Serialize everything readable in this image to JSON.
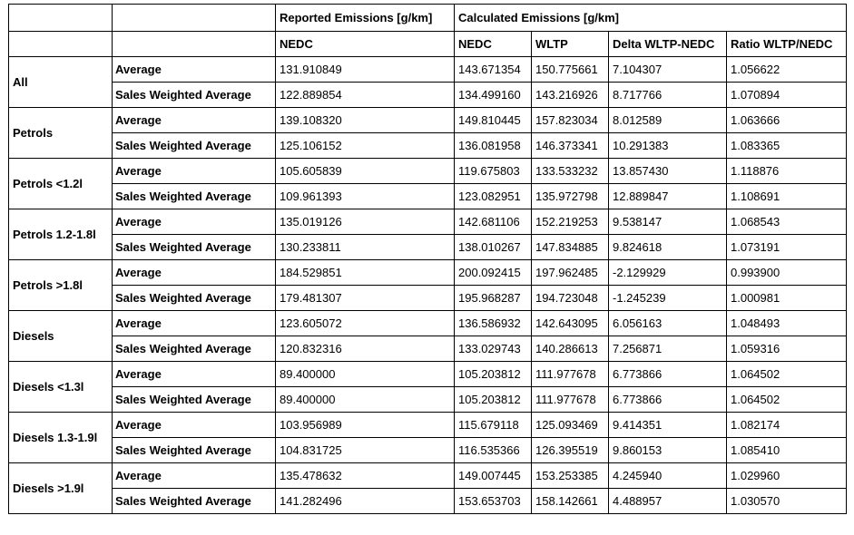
{
  "header": {
    "reported_group": "Reported Emissions [g/km]",
    "calculated_group": "Calculated Emissions [g/km]",
    "columns": [
      "NEDC",
      "NEDC",
      "WLTP",
      "Delta WLTP-NEDC",
      "Ratio WLTP/NEDC"
    ]
  },
  "groups": [
    {
      "name": "All",
      "rows": [
        {
          "metric": "Average",
          "values": [
            "131.910849",
            "143.671354",
            "150.775661",
            "7.104307",
            "1.056622"
          ]
        },
        {
          "metric": "Sales Weighted Average",
          "values": [
            "122.889854",
            "134.499160",
            "143.216926",
            "8.717766",
            "1.070894"
          ]
        }
      ]
    },
    {
      "name": "Petrols",
      "rows": [
        {
          "metric": "Average",
          "values": [
            "139.108320",
            "149.810445",
            "157.823034",
            "8.012589",
            "1.063666"
          ]
        },
        {
          "metric": "Sales Weighted Average",
          "values": [
            "125.106152",
            "136.081958",
            "146.373341",
            "10.291383",
            "1.083365"
          ]
        }
      ]
    },
    {
      "name": "Petrols <1.2l",
      "rows": [
        {
          "metric": "Average",
          "values": [
            "105.605839",
            "119.675803",
            "133.533232",
            "13.857430",
            "1.118876"
          ]
        },
        {
          "metric": "Sales Weighted Average",
          "values": [
            "109.961393",
            "123.082951",
            "135.972798",
            "12.889847",
            "1.108691"
          ]
        }
      ]
    },
    {
      "name": "Petrols 1.2-1.8l",
      "rows": [
        {
          "metric": "Average",
          "values": [
            "135.019126",
            "142.681106",
            "152.219253",
            "9.538147",
            "1.068543"
          ]
        },
        {
          "metric": "Sales Weighted Average",
          "values": [
            "130.233811",
            "138.010267",
            "147.834885",
            "9.824618",
            "1.073191"
          ]
        }
      ]
    },
    {
      "name": "Petrols >1.8l",
      "rows": [
        {
          "metric": "Average",
          "values": [
            "184.529851",
            "200.092415",
            "197.962485",
            "-2.129929",
            "0.993900"
          ]
        },
        {
          "metric": "Sales Weighted Average",
          "values": [
            "179.481307",
            "195.968287",
            "194.723048",
            "-1.245239",
            "1.000981"
          ]
        }
      ]
    },
    {
      "name": "Diesels",
      "rows": [
        {
          "metric": "Average",
          "values": [
            "123.605072",
            "136.586932",
            "142.643095",
            "6.056163",
            "1.048493"
          ]
        },
        {
          "metric": "Sales Weighted Average",
          "values": [
            "120.832316",
            "133.029743",
            "140.286613",
            "7.256871",
            "1.059316"
          ]
        }
      ]
    },
    {
      "name": "Diesels <1.3l",
      "rows": [
        {
          "metric": "Average",
          "values": [
            "89.400000",
            "105.203812",
            "111.977678",
            "6.773866",
            "1.064502"
          ]
        },
        {
          "metric": "Sales Weighted Average",
          "values": [
            "89.400000",
            "105.203812",
            "111.977678",
            "6.773866",
            "1.064502"
          ]
        }
      ]
    },
    {
      "name": "Diesels 1.3-1.9l",
      "rows": [
        {
          "metric": "Average",
          "values": [
            "103.956989",
            "115.679118",
            "125.093469",
            "9.414351",
            "1.082174"
          ]
        },
        {
          "metric": "Sales Weighted Average",
          "values": [
            "104.831725",
            "116.535366",
            "126.395519",
            "9.860153",
            "1.085410"
          ]
        }
      ]
    },
    {
      "name": "Diesels >1.9l",
      "rows": [
        {
          "metric": "Average",
          "values": [
            "135.478632",
            "149.007445",
            "153.253385",
            "4.245940",
            "1.029960"
          ]
        },
        {
          "metric": "Sales Weighted Average",
          "values": [
            "141.282496",
            "153.653703",
            "158.142661",
            "4.488957",
            "1.030570"
          ]
        }
      ]
    }
  ]
}
